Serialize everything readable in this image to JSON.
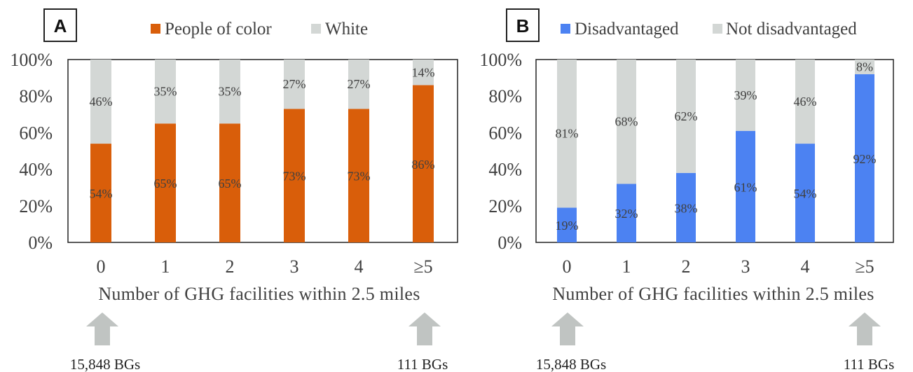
{
  "colors": {
    "people_of_color": "#D95E0A",
    "white": "#D3D7D5",
    "disadvantaged": "#4C82F2",
    "not_disadvantaged": "#D3D7D5",
    "arrow": "#C0C4C2",
    "text": "#404040"
  },
  "chart_data": [
    {
      "type": "bar",
      "stacked": true,
      "panel_label": "A",
      "categories": [
        "0",
        "1",
        "2",
        "3",
        "4",
        "≥5"
      ],
      "series": [
        {
          "name": "People of color",
          "values": [
            54,
            65,
            65,
            73,
            73,
            86
          ],
          "labels": [
            "54%",
            "65%",
            "65%",
            "73%",
            "73%",
            "86%"
          ]
        },
        {
          "name": "White",
          "values": [
            46,
            35,
            35,
            27,
            27,
            14
          ],
          "labels": [
            "46%",
            "35%",
            "35%",
            "27%",
            "27%",
            "14%"
          ]
        }
      ],
      "xlabel": "Number of GHG facilities within 2.5 miles",
      "ylabel": "",
      "ylim": [
        0,
        100
      ],
      "yticks": [
        "0%",
        "20%",
        "40%",
        "60%",
        "80%",
        "100%"
      ],
      "legend": "top",
      "grid": false,
      "annotations": [
        {
          "category": "0",
          "text": "15,848 BGs"
        },
        {
          "category": "≥5",
          "text": "111 BGs"
        }
      ]
    },
    {
      "type": "bar",
      "stacked": true,
      "panel_label": "B",
      "categories": [
        "0",
        "1",
        "2",
        "3",
        "4",
        "≥5"
      ],
      "series": [
        {
          "name": "Disadvantaged",
          "values": [
            19,
            32,
            38,
            61,
            54,
            92
          ],
          "labels": [
            "19%",
            "32%",
            "38%",
            "61%",
            "54%",
            "92%"
          ]
        },
        {
          "name": "Not disadvantaged",
          "values": [
            81,
            68,
            62,
            39,
            46,
            8
          ],
          "labels": [
            "81%",
            "68%",
            "62%",
            "39%",
            "46%",
            "8%"
          ]
        }
      ],
      "xlabel": "Number of GHG facilities within 2.5 miles",
      "ylabel": "",
      "ylim": [
        0,
        100
      ],
      "yticks": [
        "0%",
        "20%",
        "40%",
        "60%",
        "80%",
        "100%"
      ],
      "legend": "top",
      "grid": false,
      "annotations": [
        {
          "category": "0",
          "text": "15,848 BGs"
        },
        {
          "category": "≥5",
          "text": "111 BGs"
        }
      ]
    }
  ]
}
